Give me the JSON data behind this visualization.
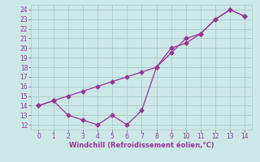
{
  "xlabel": "Windchill (Refroidissement éolien,°C)",
  "xlim": [
    -0.5,
    14.5
  ],
  "ylim": [
    11.5,
    24.5
  ],
  "xticks": [
    0,
    1,
    2,
    3,
    4,
    5,
    6,
    7,
    8,
    9,
    10,
    11,
    12,
    13,
    14
  ],
  "yticks": [
    12,
    13,
    14,
    15,
    16,
    17,
    18,
    19,
    20,
    21,
    22,
    23,
    24
  ],
  "bg_color": "#cce8e6",
  "grid_color": "#aacccc",
  "line_color": "#993399",
  "zigzag_x": [
    0,
    1,
    2,
    3,
    4,
    5,
    6,
    7,
    8,
    9,
    10,
    11,
    12,
    13,
    14
  ],
  "zigzag_y": [
    14.0,
    14.5,
    13.0,
    12.5,
    12.0,
    13.0,
    12.0,
    13.5,
    18.0,
    20.0,
    20.5,
    21.5,
    23.0,
    24.0,
    23.3
  ],
  "diag_x": [
    0,
    1,
    2,
    3,
    4,
    5,
    6,
    7,
    8,
    9,
    10,
    11,
    12,
    13,
    14
  ],
  "diag_y": [
    14.0,
    14.5,
    15.0,
    15.5,
    16.0,
    16.5,
    17.0,
    17.5,
    18.0,
    19.5,
    21.0,
    21.5,
    23.0,
    24.0,
    23.3
  ],
  "font_color": "#993399",
  "tick_fontsize": 5.5,
  "xlabel_fontsize": 6.0
}
